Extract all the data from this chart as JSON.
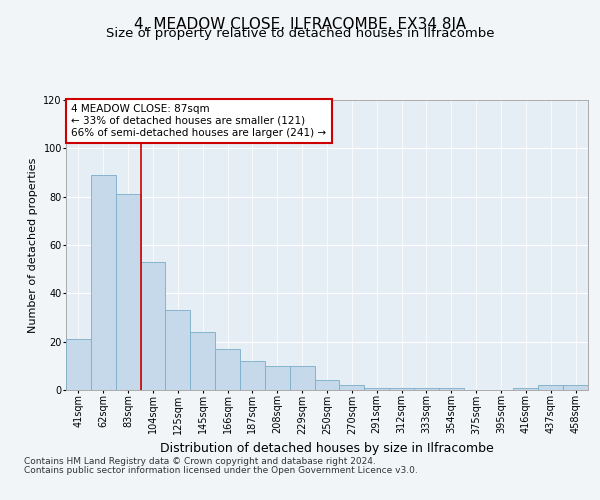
{
  "title": "4, MEADOW CLOSE, ILFRACOMBE, EX34 8JA",
  "subtitle": "Size of property relative to detached houses in Ilfracombe",
  "xlabel": "Distribution of detached houses by size in Ilfracombe",
  "ylabel": "Number of detached properties",
  "categories": [
    "41sqm",
    "62sqm",
    "83sqm",
    "104sqm",
    "125sqm",
    "145sqm",
    "166sqm",
    "187sqm",
    "208sqm",
    "229sqm",
    "250sqm",
    "270sqm",
    "291sqm",
    "312sqm",
    "333sqm",
    "354sqm",
    "375sqm",
    "395sqm",
    "416sqm",
    "437sqm",
    "458sqm"
  ],
  "values": [
    21,
    89,
    81,
    53,
    33,
    24,
    17,
    12,
    10,
    10,
    4,
    2,
    1,
    1,
    1,
    1,
    0,
    0,
    1,
    2,
    2
  ],
  "bar_color": "#c6d9ea",
  "bar_edge_color": "#7aadc8",
  "annotation_text_line1": "4 MEADOW CLOSE: 87sqm",
  "annotation_text_line2": "← 33% of detached houses are smaller (121)",
  "annotation_text_line3": "66% of semi-detached houses are larger (241) →",
  "annotation_box_facecolor": "#ffffff",
  "annotation_box_edgecolor": "#cc0000",
  "vline_color": "#cc0000",
  "vline_x": 2.5,
  "ylim": [
    0,
    120
  ],
  "yticks": [
    0,
    20,
    40,
    60,
    80,
    100,
    120
  ],
  "footnote_line1": "Contains HM Land Registry data © Crown copyright and database right 2024.",
  "footnote_line2": "Contains public sector information licensed under the Open Government Licence v3.0.",
  "background_color": "#f2f5f8",
  "plot_background_color": "#e6eef5",
  "title_fontsize": 11,
  "subtitle_fontsize": 9.5,
  "xlabel_fontsize": 9,
  "ylabel_fontsize": 8,
  "tick_fontsize": 7,
  "footnote_fontsize": 6.5,
  "annotation_fontsize": 7.5
}
